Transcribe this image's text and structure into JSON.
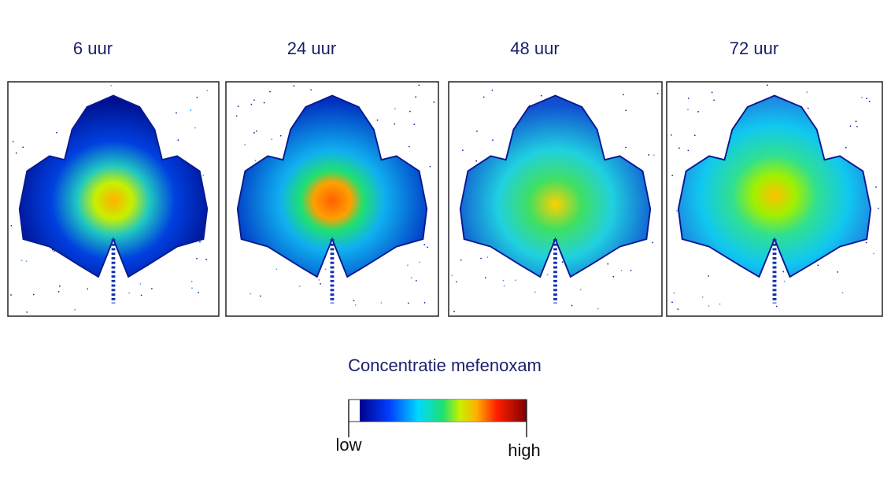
{
  "panels": [
    {
      "title": "6 uur"
    },
    {
      "title": "24 uur"
    },
    {
      "title": "48 uur"
    },
    {
      "title": "72 uur"
    }
  ],
  "legend": {
    "title": "Concentratie mefenoxam",
    "low": "low",
    "high": "high"
  }
}
